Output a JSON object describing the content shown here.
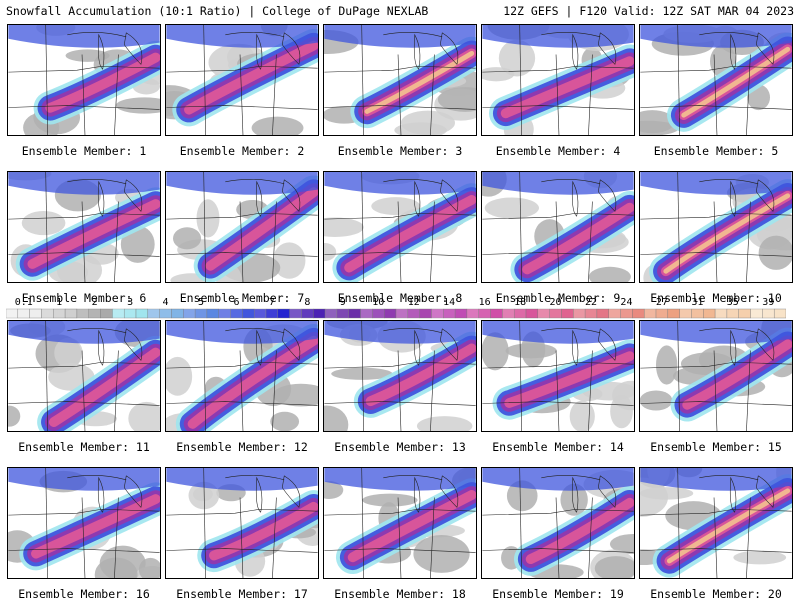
{
  "header": {
    "left": "Snowfall Accumulation (10:1 Ratio) | College of DuPage NEXLAB",
    "right": "12Z GEFS | F120 Valid: 12Z SAT MAR 04 2023"
  },
  "legend": {
    "labels": [
      "0.1",
      "1",
      "2",
      "3",
      "4",
      "5",
      "6",
      "7",
      "8",
      "9",
      "10",
      "12",
      "14",
      "16",
      "18",
      "20",
      "22",
      "24",
      "27",
      "31",
      "35",
      "39"
    ],
    "colors": [
      "#eeeeee",
      "#cfcfcf",
      "#a9a9a9",
      "#9fe5ee",
      "#7fb4e6",
      "#5a86e2",
      "#3f55dd",
      "#2121d0",
      "#4a1fb4",
      "#6a2da8",
      "#8e39b0",
      "#a844b0",
      "#c04ab4",
      "#d04ba6",
      "#d8559a",
      "#e0628f",
      "#e47585",
      "#e9897e",
      "#eda080",
      "#f1b791",
      "#f5cfac",
      "#f8e3c8"
    ]
  },
  "panels": [
    {
      "label": "Ensemble Member: 1"
    },
    {
      "label": "Ensemble Member: 2"
    },
    {
      "label": "Ensemble Member: 3"
    },
    {
      "label": "Ensemble Member: 4"
    },
    {
      "label": "Ensemble Member: 5"
    },
    {
      "label": "Ensemble Member: 6"
    },
    {
      "label": "Ensemble Member: 7"
    },
    {
      "label": "Ensemble Member: 8"
    },
    {
      "label": "Ensemble Member: 9"
    },
    {
      "label": "Ensemble Member: 10"
    },
    {
      "label": "Ensemble Member: 11"
    },
    {
      "label": "Ensemble Member: 12"
    },
    {
      "label": "Ensemble Member: 13"
    },
    {
      "label": "Ensemble Member: 14"
    },
    {
      "label": "Ensemble Member: 15"
    },
    {
      "label": "Ensemble Member: 16"
    },
    {
      "label": "Ensemble Member: 17"
    },
    {
      "label": "Ensemble Member: 18"
    },
    {
      "label": "Ensemble Member: 19"
    },
    {
      "label": "Ensemble Member: 20"
    }
  ]
}
